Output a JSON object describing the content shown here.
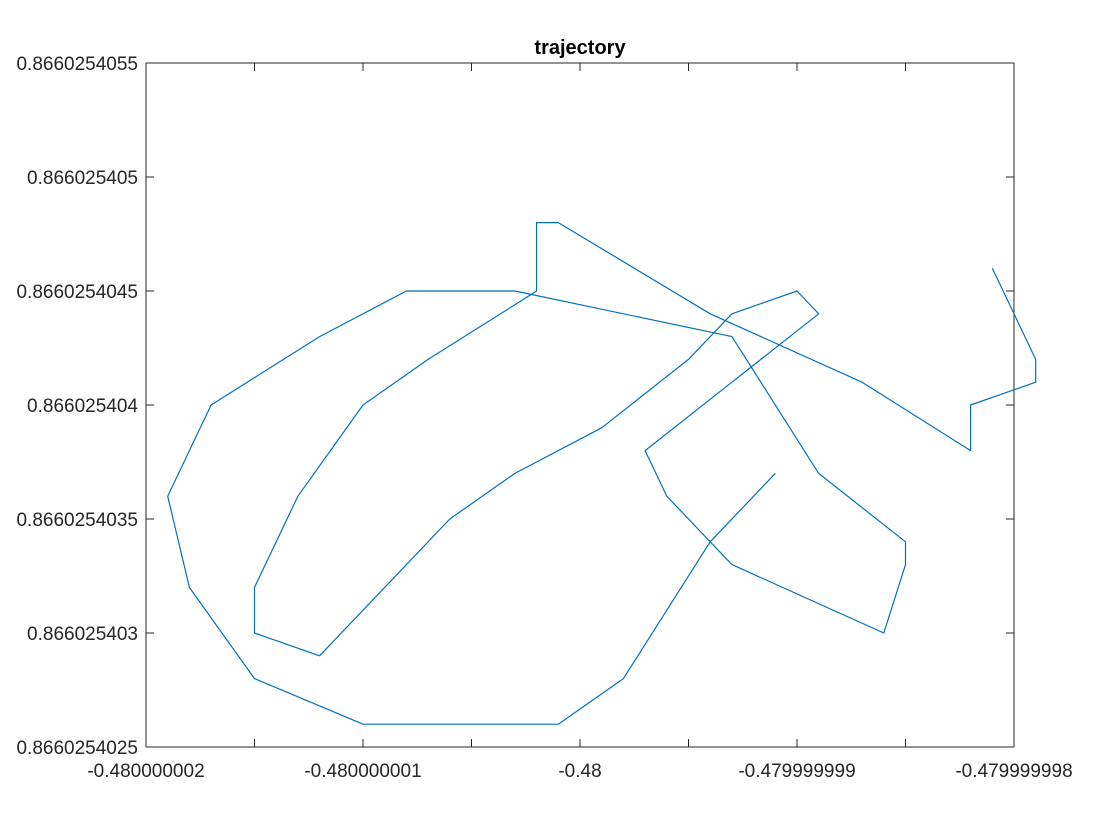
{
  "chart_data": {
    "type": "line",
    "title": "trajectory",
    "xlabel": "",
    "ylabel": "",
    "xlim": [
      -0.480000002,
      -0.479999998
    ],
    "ylim": [
      0.8660254025,
      0.8660254055
    ],
    "x_ticks": [
      -0.480000002,
      -0.4800000015,
      -0.480000001,
      -0.4800000005,
      -0.48,
      -0.4799999995,
      -0.479999999,
      -0.4799999985,
      -0.479999998
    ],
    "x_tick_labels": [
      "-0.480000002",
      "",
      "-0.480000001",
      "",
      "-0.48",
      "",
      "-0.479999999",
      "",
      "-0.479999998"
    ],
    "y_ticks": [
      0.8660254025,
      0.866025403,
      0.8660254035,
      0.866025404,
      0.8660254045,
      0.866025405,
      0.8660254055
    ],
    "y_tick_labels": [
      "0.8660254025",
      "0.866025403",
      "0.8660254035",
      "0.866025404",
      "0.8660254045",
      "0.866025405",
      "0.8660254055"
    ],
    "grid": false,
    "line_color": "#0072BD",
    "series": [
      {
        "x": [
          -0.4799999991,
          -0.4799999992,
          -0.4799999994,
          -0.4799999996,
          -0.4799999998,
          -0.4800000001,
          -0.4800000005,
          -0.480000001,
          -0.4800000015,
          -0.4800000018,
          -0.4800000019,
          -0.4800000017,
          -0.4800000012,
          -0.4800000008,
          -0.4800000003,
          -0.4799999993,
          -0.4799999989,
          -0.4799999985,
          -0.4799999985,
          -0.4799999986,
          -0.4799999993,
          -0.4799999996,
          -0.4799999997,
          -0.4799999993,
          -0.4799999989,
          -0.479999999,
          -0.4799999993,
          -0.4799999995,
          -0.4799999999,
          -0.4800000003,
          -0.4800000006,
          -0.4800000009,
          -0.4800000012,
          -0.4800000015,
          -0.4800000015,
          -0.4800000013,
          -0.480000001,
          -0.4800000007,
          -0.4800000002,
          -0.4800000002,
          -0.4800000001,
          -0.4799999994,
          -0.4799999987,
          -0.4799999982,
          -0.4799999982,
          -0.4799999979,
          -0.4799999979,
          -0.479999998,
          -0.4799999981
        ],
        "y": [
          0.8660254037,
          0.8660254036,
          0.8660254034,
          0.8660254031,
          0.8660254028,
          0.8660254026,
          0.8660254026,
          0.8660254026,
          0.8660254028,
          0.8660254032,
          0.8660254036,
          0.866025404,
          0.8660254043,
          0.8660254045,
          0.8660254045,
          0.8660254043,
          0.8660254037,
          0.8660254034,
          0.8660254033,
          0.866025403,
          0.8660254033,
          0.8660254036,
          0.8660254038,
          0.8660254041,
          0.8660254044,
          0.8660254045,
          0.8660254044,
          0.8660254042,
          0.8660254039,
          0.8660254037,
          0.8660254035,
          0.8660254032,
          0.8660254029,
          0.866025403,
          0.8660254032,
          0.8660254036,
          0.866025404,
          0.8660254042,
          0.8660254045,
          0.8660254048,
          0.8660254048,
          0.8660254044,
          0.8660254041,
          0.8660254038,
          0.866025404,
          0.8660254041,
          0.8660254042,
          0.8660254044,
          0.8660254046
        ]
      }
    ]
  }
}
